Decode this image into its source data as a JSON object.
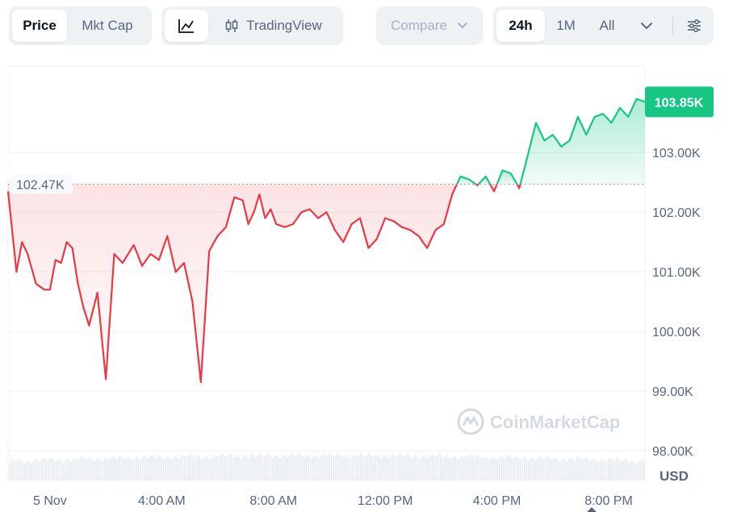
{
  "toolbar": {
    "type_tabs": [
      "Price",
      "Mkt Cap"
    ],
    "active_type": "Price",
    "view_tabs": [
      {
        "icon": "line-chart-icon",
        "label": ""
      },
      {
        "icon": "candlestick-icon",
        "label": "TradingView"
      }
    ],
    "compare_label": "Compare",
    "range_tabs": [
      "24h",
      "1M",
      "All"
    ],
    "active_range": "24h",
    "range_more_icon": "chevron-down-icon",
    "settings_icon": "sliders-icon"
  },
  "colors": {
    "up": "#16c784",
    "down": "#ea3943",
    "grid": "#eff2f5",
    "axis_text": "#58667e",
    "reference_label_bg": "#f8fafd"
  },
  "chart_data": {
    "type": "line",
    "xlabel": "",
    "ylabel": "USD",
    "x_ticks": [
      "5 Nov",
      "4:00 AM",
      "8:00 AM",
      "12:00 PM",
      "4:00 PM",
      "8:00 PM"
    ],
    "y_ticks": [
      "98.00K",
      "99.00K",
      "100.00K",
      "101.00K",
      "102.00K",
      "103.00K"
    ],
    "ylim": [
      97500,
      104450
    ],
    "reference_line": {
      "value": 102470,
      "label": "102.47K"
    },
    "current_price": {
      "value": 103850,
      "label": "103.85K"
    },
    "grid": true,
    "watermark": "CoinMarketCap",
    "x_unit": "hours since 12:00 AM 5 Nov",
    "x_range": [
      -1.5,
      21.3
    ],
    "series": [
      {
        "name": "Price",
        "x": [
          -1.5,
          -1.2,
          -1.0,
          -0.8,
          -0.5,
          -0.2,
          0.0,
          0.2,
          0.4,
          0.6,
          0.8,
          1.0,
          1.2,
          1.4,
          1.7,
          2.0,
          2.3,
          2.6,
          3.0,
          3.3,
          3.6,
          3.9,
          4.2,
          4.5,
          4.8,
          5.1,
          5.4,
          5.7,
          6.0,
          6.3,
          6.6,
          6.9,
          7.1,
          7.3,
          7.5,
          7.7,
          7.9,
          8.1,
          8.4,
          8.7,
          9.0,
          9.3,
          9.6,
          9.9,
          10.2,
          10.5,
          10.8,
          11.1,
          11.4,
          11.7,
          12.0,
          12.3,
          12.6,
          12.9,
          13.2,
          13.5,
          13.8,
          14.1,
          14.4,
          14.7,
          15.0,
          15.3,
          15.6,
          15.9,
          16.2,
          16.5,
          16.8,
          17.1,
          17.4,
          17.7,
          18.0,
          18.3,
          18.6,
          18.9,
          19.2,
          19.5,
          19.8,
          20.1,
          20.4,
          20.7,
          21.0,
          21.3
        ],
        "y": [
          102350,
          101000,
          101500,
          101300,
          100800,
          100700,
          100700,
          101200,
          101150,
          101500,
          101400,
          100800,
          100400,
          100100,
          100650,
          99200,
          101300,
          101150,
          101450,
          101100,
          101300,
          101200,
          101600,
          101000,
          101150,
          100500,
          99150,
          101350,
          101600,
          101750,
          102250,
          102200,
          101800,
          102000,
          102300,
          101900,
          102050,
          101800,
          101750,
          101800,
          102000,
          102050,
          101900,
          102000,
          101700,
          101500,
          101800,
          101900,
          101400,
          101550,
          101900,
          101850,
          101750,
          101700,
          101600,
          101400,
          101700,
          101800,
          102300,
          102600,
          102550,
          102450,
          102600,
          102350,
          102700,
          102650,
          102400,
          102950,
          103500,
          103200,
          103300,
          103100,
          103200,
          103600,
          103300,
          103600,
          103650,
          103500,
          103750,
          103600,
          103900,
          103850
        ]
      }
    ]
  }
}
